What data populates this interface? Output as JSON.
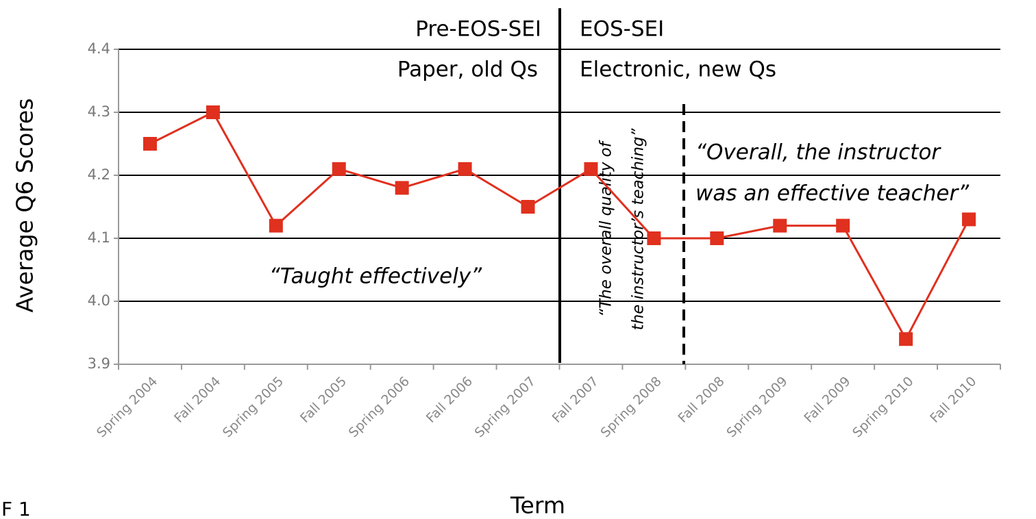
{
  "chart_data": {
    "type": "line",
    "xlabel": "Term",
    "ylabel": "Average Q6 Scores",
    "categories": [
      "Spring 2004",
      "Fall 2004",
      "Spring 2005",
      "Fall 2005",
      "Spring 2006",
      "Fall 2006",
      "Spring 2007",
      "Fall 2007",
      "Spring 2008",
      "Fall 2008",
      "Spring 2009",
      "Fall 2009",
      "Spring 2010",
      "Fall 2010"
    ],
    "series": [
      {
        "name": "Average Q6 Scores",
        "color": "#e0301e",
        "values": [
          4.25,
          4.3,
          4.12,
          4.21,
          4.18,
          4.21,
          4.15,
          4.21,
          4.1,
          4.1,
          4.12,
          4.12,
          3.94,
          4.13
        ]
      }
    ],
    "ylim": [
      3.9,
      4.4
    ],
    "yticks": [
      3.9,
      {
        "value": 4,
        "label": "4.0"
      },
      4.1,
      4.2,
      4.3,
      4.4
    ],
    "grid": true,
    "annotations": [
      "Pre-EOS-SEI",
      "EOS-SEI",
      "Paper, old Qs",
      "Electronic, new Qs",
      "“Taught effectively”",
      "“The overall quality of",
      "the instructor’s teaching”",
      "“Overall, the instructor",
      "was an effective teacher”"
    ],
    "figure_label": "F 1"
  }
}
